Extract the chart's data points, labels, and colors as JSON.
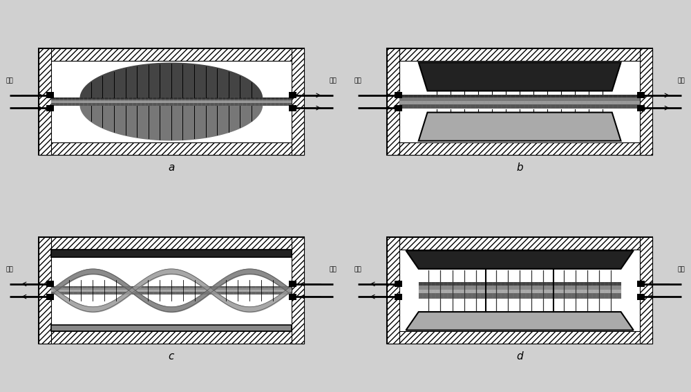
{
  "bg_color": "#d0d0d0",
  "white": "#ffffff",
  "black": "#000000",
  "dark": "#222222",
  "mid": "#888888",
  "light": "#bbbbbb",
  "labels": [
    "a",
    "b",
    "c",
    "d"
  ],
  "chinese": {
    "helium": "氢气",
    "vacuum": "真空",
    "atm": "大气"
  },
  "fig_w": 10.0,
  "fig_h": 5.67,
  "dpi": 100
}
